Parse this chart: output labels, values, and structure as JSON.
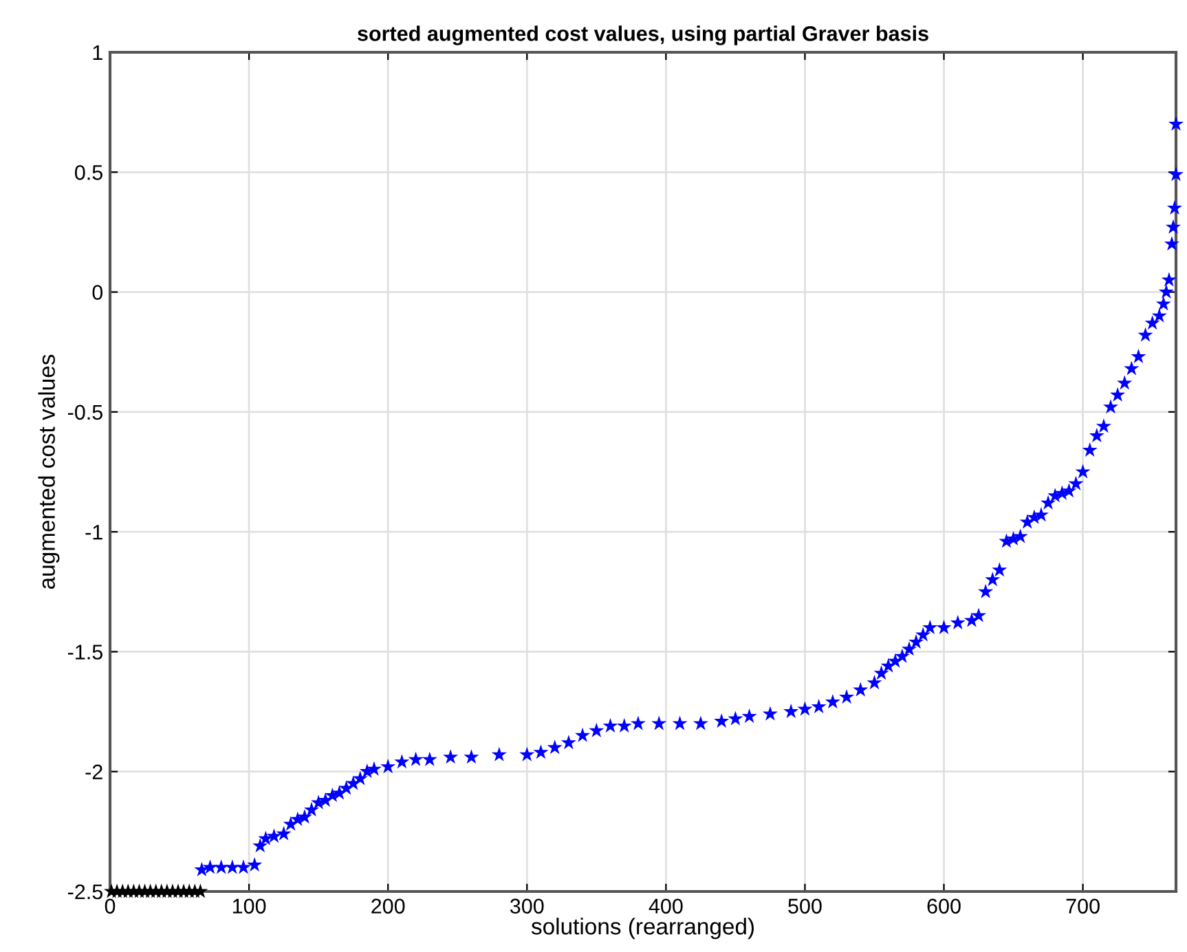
{
  "chart_data": {
    "type": "scatter",
    "title": "sorted augmented cost values, using partial Graver basis",
    "xlabel": "solutions (rearranged)",
    "ylabel": "augmented cost values",
    "xlim": [
      0,
      767
    ],
    "ylim": [
      -2.5,
      1
    ],
    "xticks": [
      0,
      100,
      200,
      300,
      400,
      500,
      600,
      700
    ],
    "yticks": [
      -2.5,
      -2,
      -1.5,
      -1,
      -0.5,
      0,
      0.5,
      1
    ],
    "grid": true,
    "marker": "star",
    "series": [
      {
        "color": "#000000",
        "x": [
          1,
          5,
          9,
          13,
          17,
          21,
          25,
          29,
          33,
          37,
          41,
          45,
          49,
          53,
          57,
          61,
          65
        ],
        "values": [
          -2.5,
          -2.5,
          -2.5,
          -2.5,
          -2.5,
          -2.5,
          -2.5,
          -2.5,
          -2.5,
          -2.5,
          -2.5,
          -2.5,
          -2.5,
          -2.5,
          -2.5,
          -2.5,
          -2.5
        ]
      },
      {
        "color": "#0000ff",
        "x": [
          66,
          72,
          80,
          88,
          96,
          104,
          108,
          112,
          118,
          125,
          130,
          135,
          140,
          145,
          150,
          155,
          160,
          165,
          170,
          175,
          180,
          185,
          190,
          200,
          210,
          220,
          230,
          245,
          260,
          280,
          300,
          310,
          320,
          330,
          340,
          350,
          360,
          370,
          380,
          395,
          410,
          425,
          440,
          450,
          460,
          475,
          490,
          500,
          510,
          520,
          530,
          540,
          550,
          555,
          560,
          565,
          570,
          575,
          580,
          585,
          590,
          600,
          610,
          620,
          625,
          630,
          635,
          640,
          645,
          650,
          655,
          660,
          665,
          670,
          675,
          680,
          685,
          690,
          695,
          700,
          705,
          710,
          715,
          720,
          725,
          730,
          735,
          740,
          745,
          750,
          755,
          758,
          760,
          762,
          764,
          765,
          766,
          767
        ],
        "values": [
          -2.41,
          -2.4,
          -2.4,
          -2.4,
          -2.4,
          -2.39,
          -2.31,
          -2.28,
          -2.27,
          -2.26,
          -2.22,
          -2.2,
          -2.19,
          -2.16,
          -2.13,
          -2.12,
          -2.1,
          -2.09,
          -2.07,
          -2.05,
          -2.03,
          -2.0,
          -1.99,
          -1.98,
          -1.96,
          -1.95,
          -1.95,
          -1.94,
          -1.94,
          -1.93,
          -1.93,
          -1.92,
          -1.9,
          -1.88,
          -1.85,
          -1.83,
          -1.81,
          -1.81,
          -1.8,
          -1.8,
          -1.8,
          -1.8,
          -1.79,
          -1.78,
          -1.77,
          -1.76,
          -1.75,
          -1.74,
          -1.73,
          -1.71,
          -1.69,
          -1.66,
          -1.63,
          -1.59,
          -1.56,
          -1.54,
          -1.52,
          -1.49,
          -1.46,
          -1.43,
          -1.4,
          -1.4,
          -1.38,
          -1.37,
          -1.35,
          -1.25,
          -1.2,
          -1.16,
          -1.04,
          -1.03,
          -1.02,
          -0.96,
          -0.94,
          -0.93,
          -0.88,
          -0.85,
          -0.84,
          -0.83,
          -0.8,
          -0.75,
          -0.66,
          -0.6,
          -0.56,
          -0.48,
          -0.43,
          -0.38,
          -0.32,
          -0.27,
          -0.18,
          -0.13,
          -0.1,
          -0.05,
          0.0,
          0.05,
          0.2,
          0.27,
          0.35,
          0.49
        ]
      },
      {
        "color": "#0000ff",
        "x": [
          767
        ],
        "values": [
          0.7
        ]
      }
    ]
  }
}
